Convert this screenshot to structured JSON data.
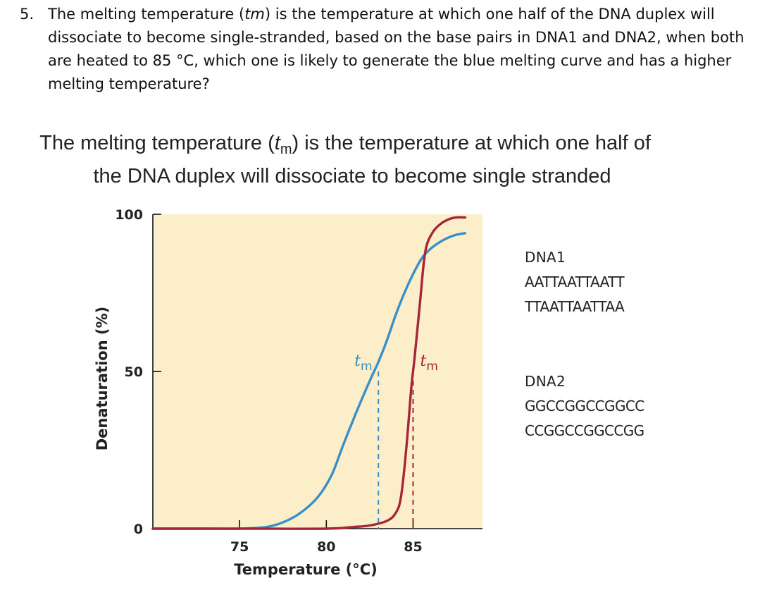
{
  "question": {
    "number": "5.",
    "text_before": "The melting temperature (",
    "text_italic": "tm",
    "text_after": ") is the temperature at which one half of the DNA duplex will dissociate to become single-stranded, based on the base pairs in DNA1 and DNA2, when both are heated to 85 °C, which one is likely to generate the blue melting curve and has a higher melting temperature?"
  },
  "heading": {
    "line1_before": "The melting temperature (",
    "tm_t": "t",
    "tm_sub": "m",
    "line1_after": ") is the temperature at which one half of",
    "line2": "the DNA duplex will dissociate to become single stranded"
  },
  "chart_data": {
    "type": "line",
    "xlabel": "Temperature (°C)",
    "ylabel": "Denaturation (%)",
    "xlim": [
      70,
      89
    ],
    "ylim": [
      0,
      100
    ],
    "x_ticks": [
      75,
      80,
      85
    ],
    "x_tick_labels": [
      "75",
      "80",
      "85"
    ],
    "y_ticks": [
      0,
      50,
      100
    ],
    "y_tick_labels": [
      "0",
      "50",
      "100"
    ],
    "background_color": "#fbeec8",
    "series": [
      {
        "color": "#3b8fc9",
        "x": [
          70,
          73,
          75,
          76.5,
          77.5,
          78.5,
          79.5,
          80.3,
          81,
          81.8,
          82.5,
          83,
          83.5,
          84,
          84.5,
          85,
          85.5,
          86,
          86.5,
          87,
          87.5,
          88
        ],
        "y": [
          0,
          0,
          0,
          0.5,
          2,
          5,
          10,
          17,
          27,
          38,
          47,
          53,
          60,
          68,
          75,
          81,
          86,
          89,
          91,
          92.5,
          93.5,
          94
        ]
      },
      {
        "color": "#a52638",
        "x": [
          70,
          75,
          80,
          81.5,
          82.5,
          83.5,
          84,
          84.3,
          84.6,
          84.9,
          85.1,
          85.4,
          85.7,
          86.1,
          86.6,
          87.1,
          87.5,
          88
        ],
        "y": [
          0,
          0,
          0,
          0.5,
          1,
          2.5,
          5,
          10,
          25,
          45,
          55,
          72,
          88,
          94,
          97,
          98.5,
          99,
          99
        ]
      }
    ],
    "annotations": [
      {
        "text_t": "t",
        "text_sub": "m",
        "x": 83,
        "y": 50,
        "color": "#3b8fc9"
      },
      {
        "text_t": "t",
        "text_sub": "m",
        "x": 85,
        "y": 50,
        "color": "#a52638"
      }
    ]
  },
  "dna": [
    {
      "label": "DNA1",
      "strand1": "AATTAATTAATT",
      "strand2": "TTAATTAATTAA"
    },
    {
      "label": "DNA2",
      "strand1": "GGCCGGCCGGCC",
      "strand2": "CCGGCCGGCCGG"
    }
  ]
}
